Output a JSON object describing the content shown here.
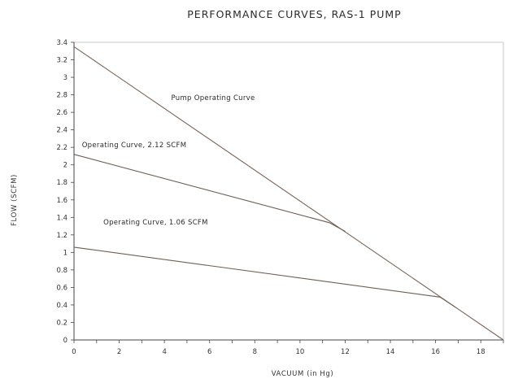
{
  "chart_data": {
    "type": "line",
    "title": "PERFORMANCE CURVES, RAS-1 PUMP",
    "xlabel": "VACUUM (in Hg)",
    "ylabel": "FLOW (SCFM)",
    "xlim": [
      0,
      19
    ],
    "ylim": [
      0,
      3.4
    ],
    "x_ticks": [
      "0",
      "2",
      "4",
      "6",
      "8",
      "10",
      "12",
      "14",
      "16",
      "18"
    ],
    "y_ticks": [
      "0",
      "0.2",
      "0.4",
      "0.6",
      "0.8",
      "1",
      "1.2",
      "1.4",
      "1.6",
      "1.8",
      "2",
      "2.2",
      "2.4",
      "2.6",
      "2.8",
      "3",
      "3.2",
      "3.4"
    ],
    "grid": false,
    "series": [
      {
        "name": "Pump Operating Curve",
        "color": "#7a6658",
        "points": [
          [
            0,
            3.35
          ],
          [
            19,
            0
          ]
        ]
      },
      {
        "name": "Operating Curve, 2.12 SCFM",
        "color": "#6e5f55",
        "points": [
          [
            0,
            2.12
          ],
          [
            11.3,
            1.34
          ],
          [
            12,
            1.24
          ]
        ]
      },
      {
        "name": "Operating Curve, 1.06 SCFM",
        "color": "#6e5f55",
        "points": [
          [
            0,
            1.06
          ],
          [
            16.2,
            0.49
          ],
          [
            16.9,
            0.37
          ]
        ]
      }
    ]
  }
}
